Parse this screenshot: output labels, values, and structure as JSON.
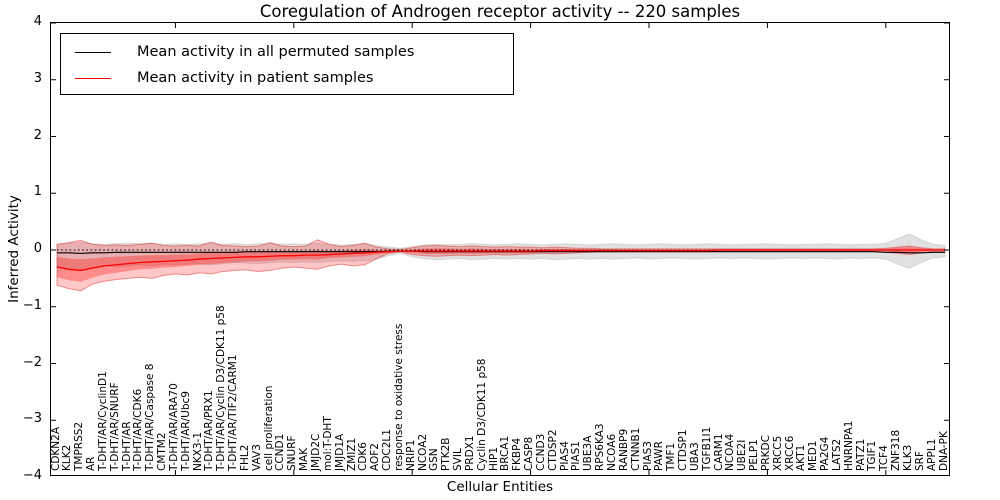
{
  "chart": {
    "title": "Coregulation of Androgen receptor activity -- 220 samples",
    "xlabel": "Cellular Entities",
    "ylabel": "Inferred Activity"
  },
  "legend": {
    "items": [
      {
        "label": "Mean activity in all permuted samples",
        "color": "#000000"
      },
      {
        "label": "Mean activity in patient samples",
        "color": "#ff0000"
      }
    ],
    "position": "upper left"
  },
  "chart_data": {
    "type": "line",
    "title": "Coregulation of Androgen receptor activity -- 220 samples",
    "xlabel": "Cellular Entities",
    "ylabel": "Inferred Activity",
    "ylim": [
      -4,
      4
    ],
    "yticks": [
      4,
      3,
      2,
      1,
      0,
      -1,
      -2,
      -3,
      -4
    ],
    "ytick_labels": [
      "4",
      "3",
      "2",
      "1",
      "0",
      "−1",
      "−2",
      "−3",
      "−4"
    ],
    "grid": false,
    "legend_position": "upper left",
    "sample_count": 220,
    "categories": [
      "CDKN2A",
      "KLK2",
      "TMPRSS2",
      "AR",
      "T-DHT/AR/CyclinD1",
      "T-DHT/AR/SNURF",
      "T-DHT/AR",
      "T-DHT/AR/CDK6",
      "T-DHT/AR/Caspase 8",
      "CMTM2",
      "T-DHT/AR/ARA70",
      "T-DHT/AR/Ubc9",
      "NKX3-1",
      "T-DHT/AR/PRX1",
      "T-DHT/AR/Cyclin D3/CDK11 p58",
      "T-DHT/AR/TIF2/CARM1",
      "FHL2",
      "VAV3",
      "cell proliferation",
      "CCND1",
      "SNURF",
      "MAK",
      "JMJD2C",
      "mol:T-DHT",
      "JMJD1A",
      "ZMIZ1",
      "CDK6",
      "AOF2",
      "CDC2L1",
      "response to oxidative stress",
      "NRIP1",
      "NCOA2",
      "GSN",
      "PTK2B",
      "SVIL",
      "PRDX1",
      "Cyclin D3/CDK11 p58",
      "HIP1",
      "BRCA1",
      "FKBP4",
      "CASP8",
      "CCND3",
      "CTDSP2",
      "PIAS4",
      "PIAS1",
      "UBE3A",
      "RPS6KA3",
      "NCOA6",
      "RANBP9",
      "CTNNB1",
      "PIAS3",
      "PAWR",
      "TMF1",
      "CTDSP1",
      "UBA3",
      "TGFB1I1",
      "CARM1",
      "NCOA4",
      "UBE2I",
      "PELP1",
      "PRKDC",
      "XRCC5",
      "XRCC6",
      "AKT1",
      "MED1",
      "PA2G4",
      "LATS2",
      "HNRNPA1",
      "PATZ1",
      "TGIF1",
      "TCF4",
      "ZNF318",
      "KLK3",
      "SRF",
      "APPL1",
      "DNA-PK"
    ],
    "series": [
      {
        "name": "Mean activity in all permuted samples",
        "color": "#000000",
        "values": [
          -0.05,
          -0.05,
          -0.06,
          -0.05,
          -0.05,
          -0.04,
          -0.04,
          -0.04,
          -0.04,
          -0.04,
          -0.04,
          -0.04,
          -0.04,
          -0.04,
          -0.04,
          -0.04,
          -0.03,
          -0.03,
          -0.03,
          -0.03,
          -0.03,
          -0.03,
          -0.03,
          -0.03,
          -0.03,
          -0.03,
          -0.03,
          -0.03,
          -0.02,
          -0.02,
          -0.02,
          -0.03,
          -0.03,
          -0.03,
          -0.03,
          -0.03,
          -0.03,
          -0.03,
          -0.03,
          -0.03,
          -0.03,
          -0.03,
          -0.03,
          -0.03,
          -0.03,
          -0.03,
          -0.03,
          -0.03,
          -0.03,
          -0.03,
          -0.03,
          -0.03,
          -0.03,
          -0.03,
          -0.03,
          -0.03,
          -0.03,
          -0.03,
          -0.03,
          -0.03,
          -0.03,
          -0.03,
          -0.03,
          -0.03,
          -0.03,
          -0.03,
          -0.03,
          -0.03,
          -0.03,
          -0.03,
          -0.04,
          -0.04,
          -0.05,
          -0.05,
          -0.04,
          -0.04
        ]
      },
      {
        "name": "Mean activity in patient samples",
        "color": "#ff0000",
        "values": [
          -0.3,
          -0.34,
          -0.36,
          -0.32,
          -0.28,
          -0.26,
          -0.24,
          -0.22,
          -0.21,
          -0.2,
          -0.19,
          -0.18,
          -0.16,
          -0.15,
          -0.14,
          -0.13,
          -0.12,
          -0.12,
          -0.11,
          -0.1,
          -0.1,
          -0.09,
          -0.09,
          -0.08,
          -0.07,
          -0.06,
          -0.05,
          -0.04,
          -0.03,
          -0.02,
          -0.02,
          -0.02,
          -0.02,
          -0.02,
          -0.02,
          -0.02,
          -0.02,
          -0.02,
          -0.02,
          -0.02,
          -0.02,
          -0.01,
          -0.01,
          -0.01,
          -0.01,
          -0.01,
          -0.01,
          -0.01,
          -0.01,
          -0.01,
          -0.01,
          -0.01,
          -0.01,
          -0.01,
          -0.01,
          -0.01,
          0.0,
          0.0,
          0.0,
          0.0,
          0.0,
          0.0,
          0.0,
          0.0,
          0.0,
          0.0,
          0.0,
          0.0,
          0.0,
          0.0,
          0.0,
          0.0,
          0.0,
          0.0,
          0.0,
          0.0
        ]
      }
    ],
    "bands": [
      {
        "name": "permuted-samples-std-band",
        "fill": "#aaaaaa",
        "fill_opacity": 0.35,
        "edge": "#bbbbbb",
        "upper": [
          0.1,
          0.12,
          0.13,
          0.11,
          0.1,
          0.11,
          0.12,
          0.11,
          0.12,
          0.1,
          0.11,
          0.1,
          0.11,
          0.12,
          0.1,
          0.11,
          0.1,
          0.11,
          0.12,
          0.1,
          0.11,
          0.1,
          0.12,
          0.1,
          0.09,
          0.1,
          0.11,
          0.08,
          0.05,
          0.03,
          0.06,
          0.09,
          0.1,
          0.09,
          0.1,
          0.11,
          0.1,
          0.09,
          0.1,
          0.11,
          0.1,
          0.09,
          0.1,
          0.11,
          0.1,
          0.09,
          0.1,
          0.11,
          0.1,
          0.09,
          0.1,
          0.11,
          0.1,
          0.09,
          0.1,
          0.11,
          0.1,
          0.09,
          0.1,
          0.1,
          0.11,
          0.1,
          0.09,
          0.1,
          0.1,
          0.11,
          0.1,
          0.09,
          0.1,
          0.1,
          0.12,
          0.2,
          0.28,
          0.18,
          0.1,
          0.08
        ],
        "lower": [
          -0.3,
          -0.32,
          -0.33,
          -0.3,
          -0.28,
          -0.3,
          -0.28,
          -0.26,
          -0.28,
          -0.25,
          -0.26,
          -0.25,
          -0.24,
          -0.26,
          -0.24,
          -0.22,
          -0.23,
          -0.24,
          -0.22,
          -0.21,
          -0.22,
          -0.21,
          -0.22,
          -0.2,
          -0.19,
          -0.2,
          -0.19,
          -0.16,
          -0.1,
          -0.06,
          -0.12,
          -0.15,
          -0.17,
          -0.16,
          -0.15,
          -0.17,
          -0.16,
          -0.15,
          -0.16,
          -0.15,
          -0.16,
          -0.15,
          -0.17,
          -0.16,
          -0.15,
          -0.16,
          -0.15,
          -0.16,
          -0.15,
          -0.14,
          -0.16,
          -0.15,
          -0.14,
          -0.15,
          -0.16,
          -0.15,
          -0.14,
          -0.15,
          -0.14,
          -0.15,
          -0.16,
          -0.15,
          -0.14,
          -0.15,
          -0.14,
          -0.15,
          -0.16,
          -0.14,
          -0.15,
          -0.14,
          -0.16,
          -0.25,
          -0.32,
          -0.22,
          -0.14,
          -0.12
        ]
      },
      {
        "name": "patient-samples-std-band",
        "fill": "#ff0000",
        "fill_opacity": 0.22,
        "edge": "#dc3c3c",
        "upper": [
          0.1,
          0.13,
          0.17,
          0.1,
          0.08,
          0.09,
          0.08,
          0.1,
          0.12,
          0.08,
          0.07,
          0.08,
          0.07,
          0.14,
          0.08,
          0.07,
          0.06,
          0.07,
          0.13,
          0.07,
          0.06,
          0.07,
          0.18,
          0.1,
          0.06,
          0.08,
          0.12,
          0.05,
          0.02,
          0.01,
          0.04,
          0.07,
          0.08,
          0.07,
          0.06,
          0.07,
          0.06,
          0.05,
          0.06,
          0.05,
          0.05,
          0.04,
          0.05,
          0.04,
          0.03,
          0.03,
          0.02,
          0.02,
          0.02,
          0.02,
          0.02,
          0.02,
          0.02,
          0.02,
          0.02,
          0.02,
          0.02,
          0.02,
          0.02,
          0.02,
          0.02,
          0.02,
          0.02,
          0.02,
          0.02,
          0.02,
          0.02,
          0.02,
          0.02,
          0.02,
          0.03,
          0.05,
          0.07,
          0.04,
          0.02,
          0.02
        ],
        "lower": [
          -0.62,
          -0.68,
          -0.72,
          -0.6,
          -0.55,
          -0.52,
          -0.5,
          -0.48,
          -0.5,
          -0.45,
          -0.42,
          -0.44,
          -0.4,
          -0.42,
          -0.38,
          -0.36,
          -0.35,
          -0.38,
          -0.36,
          -0.32,
          -0.3,
          -0.32,
          -0.34,
          -0.28,
          -0.25,
          -0.28,
          -0.26,
          -0.15,
          -0.06,
          -0.03,
          -0.08,
          -0.1,
          -0.11,
          -0.1,
          -0.09,
          -0.1,
          -0.09,
          -0.08,
          -0.09,
          -0.08,
          -0.07,
          -0.06,
          -0.07,
          -0.06,
          -0.05,
          -0.04,
          -0.03,
          -0.03,
          -0.03,
          -0.03,
          -0.03,
          -0.03,
          -0.03,
          -0.03,
          -0.03,
          -0.03,
          -0.02,
          -0.02,
          -0.02,
          -0.02,
          -0.02,
          -0.02,
          -0.02,
          -0.02,
          -0.02,
          -0.02,
          -0.02,
          -0.02,
          -0.02,
          -0.02,
          -0.04,
          -0.06,
          -0.08,
          -0.05,
          -0.03,
          -0.03
        ]
      },
      {
        "name": "patient-samples-inner-band",
        "fill": "#ff0000",
        "fill_opacity": 0.3,
        "edge": "none",
        "half_width_around_mean": [
          0.18,
          0.19,
          0.2,
          0.17,
          0.15,
          0.14,
          0.13,
          0.12,
          0.12,
          0.11,
          0.11,
          0.1,
          0.1,
          0.1,
          0.09,
          0.09,
          0.08,
          0.08,
          0.08,
          0.07,
          0.07,
          0.07,
          0.08,
          0.06,
          0.06,
          0.06,
          0.06,
          0.04,
          0.02,
          0.01,
          0.03,
          0.05,
          0.05,
          0.05,
          0.04,
          0.05,
          0.04,
          0.04,
          0.04,
          0.04,
          0.03,
          0.03,
          0.03,
          0.03,
          0.02,
          0.02,
          0.02,
          0.02,
          0.01,
          0.01,
          0.01,
          0.01,
          0.01,
          0.01,
          0.01,
          0.01,
          0.01,
          0.01,
          0.01,
          0.01,
          0.01,
          0.01,
          0.01,
          0.01,
          0.01,
          0.01,
          0.01,
          0.01,
          0.01,
          0.01,
          0.02,
          0.04,
          0.05,
          0.03,
          0.01,
          0.01
        ]
      }
    ],
    "zero_line": {
      "y": 0,
      "style": "dotted",
      "color": "#000000"
    },
    "axis_tick_indices": [
      10,
      20,
      30,
      40,
      50,
      60,
      70
    ]
  }
}
